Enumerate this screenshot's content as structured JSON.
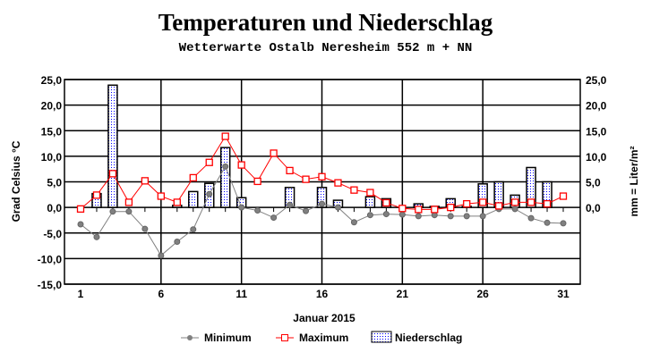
{
  "chart_data": {
    "type": "bar+line",
    "title": "Temperaturen und Niederschlag",
    "subtitle": "Wetterwarte Ostalb Neresheim 552 m + NN",
    "xlabel": "Januar 2015",
    "ylabel": "Grad Celsius °C",
    "y2label": "mm = Liter/m²",
    "ylim": [
      -15,
      25
    ],
    "y2lim": [
      -15,
      25
    ],
    "yticks": [
      "25,0",
      "20,0",
      "15,0",
      "10,0",
      "5,0",
      "0,0",
      "-5,0",
      "-10,0",
      "-15,0"
    ],
    "y2ticks": [
      "25,0",
      "20,0",
      "15,0",
      "10,0",
      "5,0",
      "0,0"
    ],
    "xticks": [
      "1",
      "6",
      "11",
      "16",
      "21",
      "26",
      "31"
    ],
    "x": [
      1,
      2,
      3,
      4,
      5,
      6,
      7,
      8,
      9,
      10,
      11,
      12,
      13,
      14,
      15,
      16,
      17,
      18,
      19,
      20,
      21,
      22,
      23,
      24,
      25,
      26,
      27,
      28,
      29,
      30,
      31
    ],
    "grid": true,
    "legend_position": "bottom",
    "series": [
      {
        "name": "Minimum",
        "type": "line",
        "color": "#808080",
        "values": [
          -3.3,
          -5.8,
          -0.8,
          -0.8,
          -4.2,
          -9.4,
          -6.7,
          -4.3,
          2.6,
          8.0,
          0.0,
          -0.6,
          -2.0,
          0.5,
          -0.7,
          0.7,
          0.0,
          -2.9,
          -1.5,
          -1.3,
          -1.4,
          -1.7,
          -1.5,
          -1.7,
          -1.7,
          -1.7,
          -0.3,
          -0.3,
          -2.1,
          -3.0,
          -3.1
        ]
      },
      {
        "name": "Maximum",
        "type": "line",
        "color": "#ff0000",
        "values": [
          -0.3,
          2.4,
          6.6,
          1.0,
          5.2,
          2.2,
          1.0,
          5.8,
          8.8,
          13.9,
          8.3,
          5.1,
          10.6,
          7.2,
          5.5,
          6.0,
          4.8,
          3.4,
          2.9,
          0.9,
          -0.2,
          -0.4,
          -0.4,
          0.0,
          0.7,
          1.0,
          0.3,
          1.0,
          1.0,
          0.7,
          2.2
        ]
      },
      {
        "name": "Niederschlag",
        "type": "bar",
        "color": "#0000ff",
        "values": [
          0,
          2.7,
          23.9,
          0,
          0,
          0,
          0.4,
          3.1,
          4.7,
          11.7,
          1.9,
          0,
          0,
          3.9,
          0,
          3.9,
          1.4,
          0,
          2.1,
          1.7,
          0,
          0.7,
          0.2,
          1.7,
          0.2,
          4.6,
          5.0,
          2.4,
          7.8,
          5.0,
          0
        ]
      }
    ]
  }
}
